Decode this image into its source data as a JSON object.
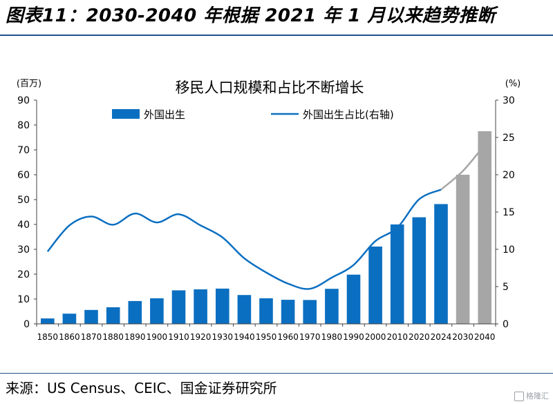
{
  "figure_title": "图表11：2030-2040 年根据 2021 年 1 月以来趋势推断",
  "source": "来源：US Census、CEIC、国金证券研究所",
  "watermark": "格隆汇",
  "chart_data": {
    "type": "bar",
    "title": "移民人口规模和占比不断增长",
    "y_left_unit": "(百万)",
    "y_right_unit": "(%)",
    "ylim_left": [
      0,
      90
    ],
    "ylim_right": [
      0,
      30
    ],
    "yticks_left": [
      0,
      10,
      20,
      30,
      40,
      50,
      60,
      70,
      80,
      90
    ],
    "yticks_right": [
      0,
      5,
      10,
      15,
      20,
      25,
      30
    ],
    "categories": [
      "1850",
      "1860",
      "1870",
      "1880",
      "1890",
      "1900",
      "1910",
      "1920",
      "1930",
      "1940",
      "1950",
      "1960",
      "1970",
      "1980",
      "1990",
      "2000",
      "2010",
      "2020",
      "2024",
      "2030",
      "2040"
    ],
    "legend": [
      "外国出生",
      "外国出生占比(右轴)"
    ],
    "series": [
      {
        "name": "外国出生",
        "kind": "bar",
        "axis": "left",
        "values": [
          2.2,
          4.1,
          5.6,
          6.7,
          9.2,
          10.3,
          13.5,
          13.9,
          14.2,
          11.6,
          10.3,
          9.7,
          9.6,
          14.1,
          19.8,
          31.1,
          40.0,
          42.9,
          48.2,
          60.0,
          77.5
        ],
        "projected_from_index": 19,
        "color": "#0b6fc1",
        "projected_color": "#a6a6a6"
      },
      {
        "name": "外国出生占比(右轴)",
        "kind": "line",
        "axis": "right",
        "values": [
          9.7,
          13.2,
          14.4,
          13.3,
          14.8,
          13.6,
          14.7,
          13.2,
          11.6,
          8.8,
          6.9,
          5.4,
          4.7,
          6.2,
          7.9,
          11.1,
          12.9,
          16.7,
          18.0,
          20.5,
          24.0
        ],
        "projected_from_index": 18,
        "color": "#0b6fc1",
        "projected_color": "#a6a6a6"
      }
    ],
    "grid": false,
    "legend_position": "top"
  }
}
